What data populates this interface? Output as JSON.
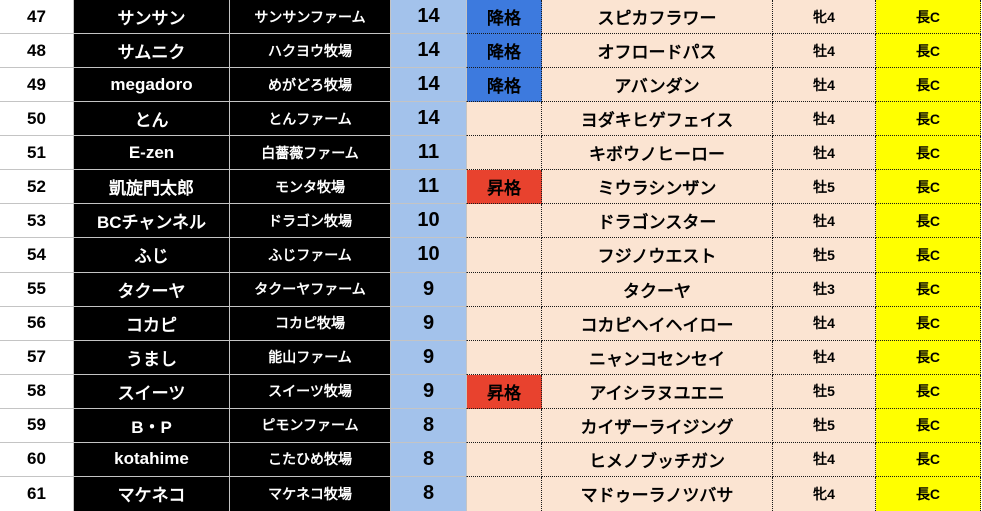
{
  "colors": {
    "demote_bg": "#3d7ade",
    "promote_bg": "#e8422e",
    "points_column_bg": "#a3c2eb",
    "row_bg": "#fbe4d2",
    "grade_bg": "#ffff00",
    "owner_column_bg": "#000000"
  },
  "table": {
    "columns": [
      "rank",
      "owner",
      "farm",
      "points",
      "status",
      "horse",
      "sex_age",
      "grade"
    ],
    "rows": [
      {
        "rank": "47",
        "owner": "サンサン",
        "farm": "サンサンファーム",
        "points": "14",
        "status": "降格",
        "status_type": "demote",
        "horse": "スピカフラワー",
        "sex_age": "牝4",
        "grade": "長C"
      },
      {
        "rank": "48",
        "owner": "サムニク",
        "farm": "ハクヨウ牧場",
        "points": "14",
        "status": "降格",
        "status_type": "demote",
        "horse": "オフロードパス",
        "sex_age": "牡4",
        "grade": "長C"
      },
      {
        "rank": "49",
        "owner": "megadoro",
        "farm": "めがどろ牧場",
        "points": "14",
        "status": "降格",
        "status_type": "demote",
        "horse": "アバンダン",
        "sex_age": "牡4",
        "grade": "長C"
      },
      {
        "rank": "50",
        "owner": "とん",
        "farm": "とんファーム",
        "points": "14",
        "status": "",
        "status_type": "none",
        "horse": "ヨダキヒゲフェイス",
        "sex_age": "牡4",
        "grade": "長C"
      },
      {
        "rank": "51",
        "owner": "E-zen",
        "farm": "白薔薇ファーム",
        "points": "11",
        "status": "",
        "status_type": "none",
        "horse": "キボウノヒーロー",
        "sex_age": "牡4",
        "grade": "長C"
      },
      {
        "rank": "52",
        "owner": "凱旋門太郎",
        "farm": "モンタ牧場",
        "points": "11",
        "status": "昇格",
        "status_type": "promote",
        "horse": "ミウラシンザン",
        "sex_age": "牡5",
        "grade": "長C"
      },
      {
        "rank": "53",
        "owner": "BCチャンネル",
        "farm": "ドラゴン牧場",
        "points": "10",
        "status": "",
        "status_type": "none",
        "horse": "ドラゴンスター",
        "sex_age": "牡4",
        "grade": "長C"
      },
      {
        "rank": "54",
        "owner": "ふじ",
        "farm": "ふじファーム",
        "points": "10",
        "status": "",
        "status_type": "none",
        "horse": "フジノウエスト",
        "sex_age": "牡5",
        "grade": "長C"
      },
      {
        "rank": "55",
        "owner": "タクーヤ",
        "farm": "タクーヤファーム",
        "points": "9",
        "status": "",
        "status_type": "none",
        "horse": "タクーヤ",
        "sex_age": "牡3",
        "grade": "長C"
      },
      {
        "rank": "56",
        "owner": "コカピ",
        "farm": "コカピ牧場",
        "points": "9",
        "status": "",
        "status_type": "none",
        "horse": "コカピヘイヘイロー",
        "sex_age": "牡4",
        "grade": "長C"
      },
      {
        "rank": "57",
        "owner": "うまし",
        "farm": "能山ファーム",
        "points": "9",
        "status": "",
        "status_type": "none",
        "horse": "ニャンコセンセイ",
        "sex_age": "牡4",
        "grade": "長C"
      },
      {
        "rank": "58",
        "owner": "スイーツ",
        "farm": "スイーツ牧場",
        "points": "9",
        "status": "昇格",
        "status_type": "promote",
        "horse": "アイシラヌユエニ",
        "sex_age": "牡5",
        "grade": "長C"
      },
      {
        "rank": "59",
        "owner": "B・P",
        "farm": "ピモンファーム",
        "points": "8",
        "status": "",
        "status_type": "none",
        "horse": "カイザーライジング",
        "sex_age": "牡5",
        "grade": "長C"
      },
      {
        "rank": "60",
        "owner": "kotahime",
        "farm": "こたひめ牧場",
        "points": "8",
        "status": "",
        "status_type": "none",
        "horse": "ヒメノブッチガン",
        "sex_age": "牡4",
        "grade": "長C"
      },
      {
        "rank": "61",
        "owner": "マケネコ",
        "farm": "マケネコ牧場",
        "points": "8",
        "status": "",
        "status_type": "none",
        "horse": "マドゥーラノツバサ",
        "sex_age": "牝4",
        "grade": "長C"
      }
    ]
  }
}
